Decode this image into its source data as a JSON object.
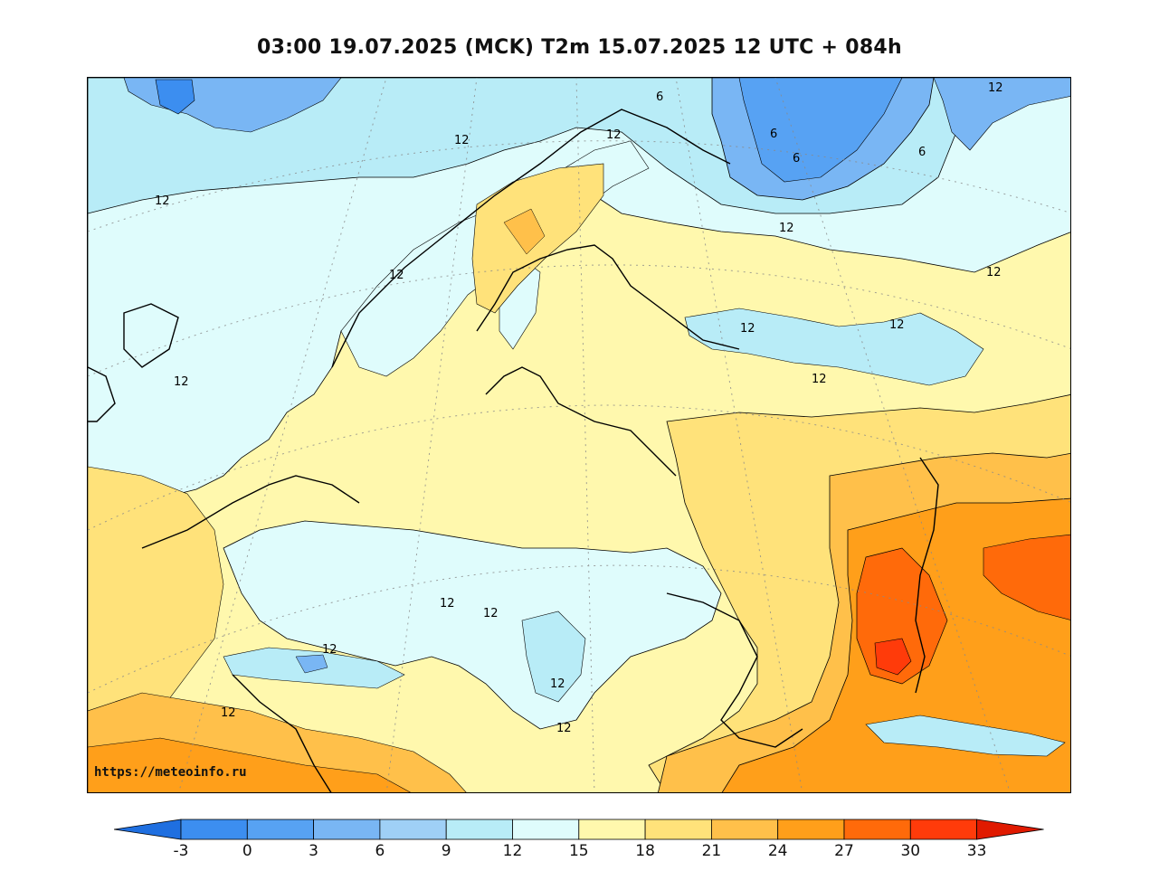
{
  "title": "03:00 19.07.2025 (MCK) T2m 15.07.2025 12 UTC + 084h",
  "watermark": "https://meteoinfo.ru",
  "contour_labels": [
    "12",
    "12",
    "12",
    "12",
    "12",
    "12",
    "12",
    "12",
    "12",
    "12",
    "12",
    "12",
    "12",
    "12",
    "12",
    "12",
    "12",
    "6",
    "6",
    "6",
    "6"
  ],
  "colorbar": {
    "ticks": [
      "-3",
      "0",
      "3",
      "6",
      "9",
      "12",
      "15",
      "18",
      "21",
      "24",
      "27",
      "30",
      "33"
    ],
    "colors": [
      "#1f6fe0",
      "#3c8ef0",
      "#57a2f3",
      "#79b6f4",
      "#9fd0f6",
      "#b8ecf7",
      "#dffcfc",
      "#fff8ad",
      "#ffe27a",
      "#ffc04a",
      "#ff9f1a",
      "#ff6a0a",
      "#ff3b0a",
      "#e01a00"
    ]
  },
  "field_colors": {
    "ocean": "#b8ecf7",
    "cool": "#dffcfc",
    "mild": "#fff8ad",
    "warm": "#ffe27a",
    "warmer": "#ffc04a",
    "hot": "#ff9f1a",
    "hotter": "#ff6a0a",
    "hottest": "#ff3b0a",
    "cold": "#79b6f4",
    "colder": "#57a2f3"
  }
}
